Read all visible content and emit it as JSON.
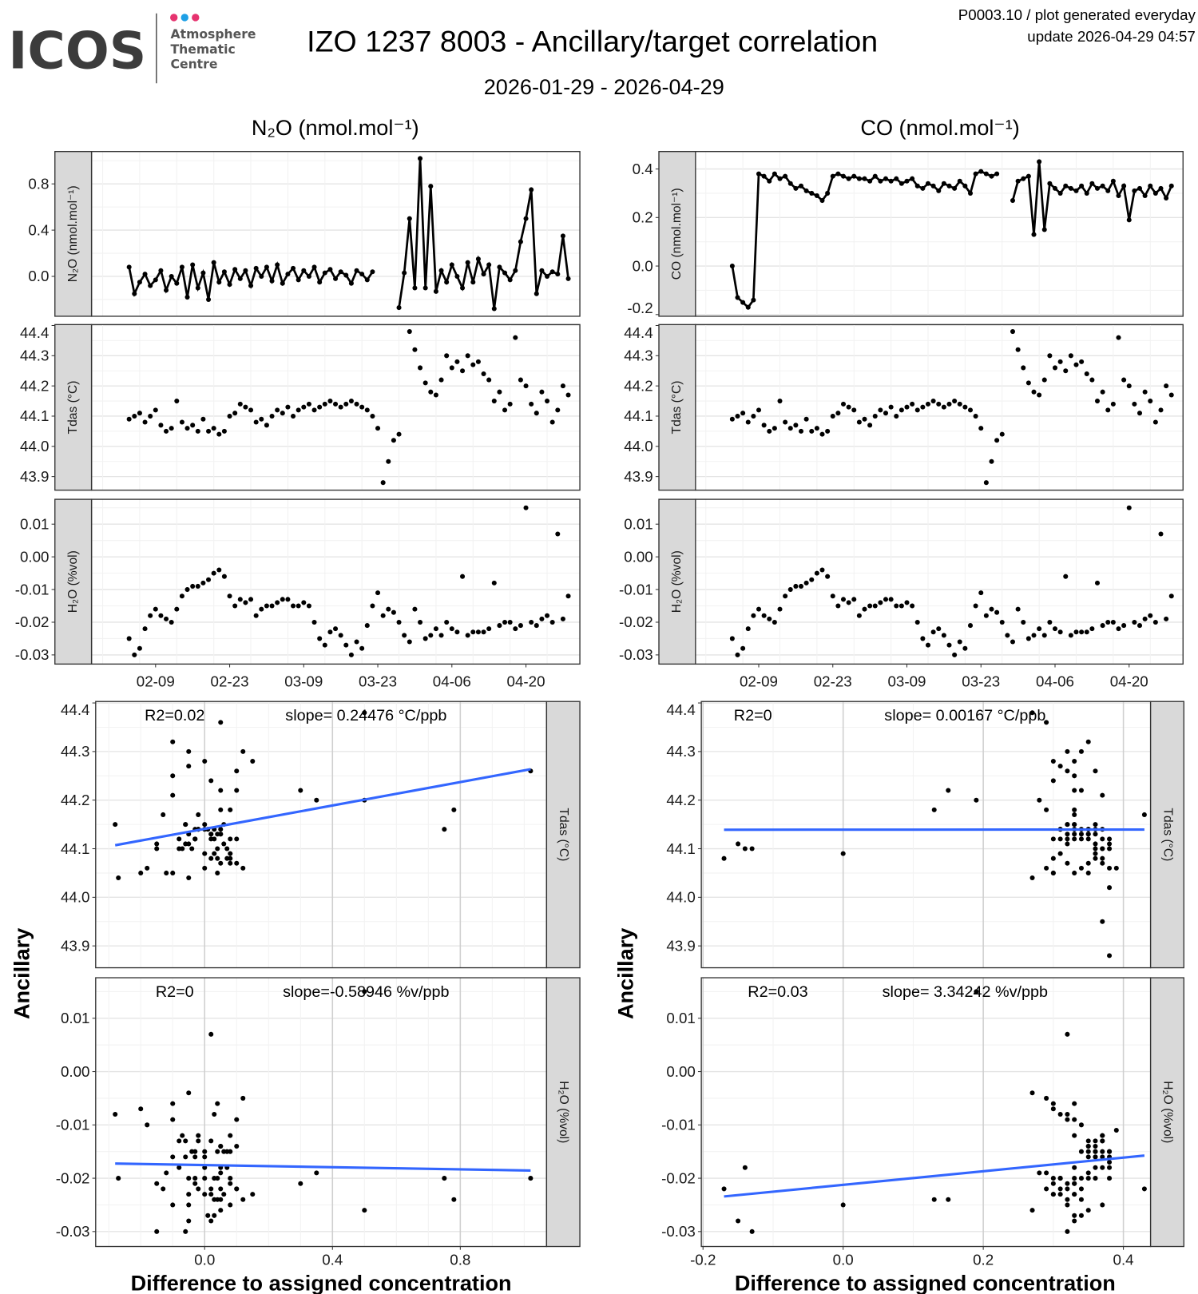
{
  "header": {
    "logo_text": "ICOS",
    "logo_sub": [
      "Atmosphere",
      "Thematic",
      "Centre"
    ],
    "title": "IZO 1237 8003 - Ancillary/target correlation",
    "subtitle": "2026-01-29 - 2026-04-29",
    "meta_line1": "P0003.10 / plot generated everyday",
    "meta_line2": "update  2026-04-29 04:57"
  },
  "colors": {
    "line": "#3366FF",
    "point": "#000000",
    "strip": "#D9D9D9",
    "logo_pink": "#E6336F",
    "logo_blue": "#1EA0E6"
  },
  "chart_data": {
    "type": "scatter",
    "start_date": "2026-02-04",
    "columns": [
      {
        "title": "N₂O (nmol.mol⁻¹)",
        "target": "N2O",
        "target_strip": "N₂O (nmol.mol⁻¹)",
        "target_yticks": [
          "0.0",
          "0.4",
          "0.8"
        ],
        "target_ylim": [
          -0.345,
          1.08
        ],
        "scatter_xticks": [
          "0.0",
          "0.4",
          "0.8"
        ],
        "scatter_xlim": [
          -0.341,
          1.07
        ],
        "annotations": {
          "tdas": [
            "R2=0.02",
            "slope= 0.24476 °C/ppb"
          ],
          "h2o": [
            "R2=0",
            "slope=-0.58946 %v/ppb"
          ]
        }
      },
      {
        "title": "CO (nmol.mol⁻¹)",
        "target": "CO",
        "target_strip": "CO (nmol.mol⁻¹)",
        "target_yticks": [
          "-0.2",
          "0.0",
          "0.2",
          "0.4"
        ],
        "target_ylim": [
          -0.207,
          0.472
        ],
        "scatter_xticks": [
          "-0.2",
          "0.0",
          "0.2",
          "0.4"
        ],
        "scatter_xlim": [
          -0.2024,
          0.4388
        ],
        "annotations": {
          "tdas": [
            "R2=0",
            "slope= 0.00167 °C/ppb"
          ],
          "h2o": [
            "R2=0.03",
            "slope= 3.34242 %v/ppb"
          ]
        }
      }
    ],
    "date_ticks": [
      "02-09",
      "02-23",
      "03-09",
      "03-23",
      "04-06",
      "04-20"
    ],
    "tdas_strip": "Tdas (°C)",
    "h2o_strip": "H₂O (%vol)",
    "tdas_yticks": [
      "44.4",
      "44.3",
      "44.2",
      "44.1",
      "44.0",
      "43.9"
    ],
    "tdas_ylim": [
      43.855,
      44.403
    ],
    "h2o_yticks": [
      "0.01",
      "0.00",
      "-0.01",
      "-0.02",
      "-0.03"
    ],
    "h2o_ylim": [
      -0.0328,
      0.0176
    ],
    "xlabel": "Difference to assigned concentration",
    "ylabel": "Ancillary",
    "series": {
      "N2O": [
        0.08,
        -0.15,
        -0.05,
        0.02,
        -0.08,
        -0.03,
        0.05,
        -0.12,
        0.0,
        -0.06,
        0.08,
        -0.18,
        0.1,
        -0.1,
        0.03,
        -0.2,
        0.12,
        -0.05,
        0.04,
        -0.07,
        0.06,
        -0.02,
        0.05,
        -0.08,
        0.07,
        0.0,
        0.08,
        -0.04,
        0.1,
        -0.06,
        0.02,
        0.07,
        -0.03,
        0.05,
        0.0,
        0.08,
        -0.05,
        0.03,
        0.06,
        -0.02,
        0.04,
        0.01,
        -0.06,
        0.05,
        0.02,
        -0.03,
        0.04,
        null,
        null,
        null,
        null,
        -0.27,
        0.03,
        0.5,
        -0.1,
        1.02,
        -0.1,
        0.78,
        -0.13,
        0.05,
        -0.05,
        0.1,
        0.0,
        -0.1,
        0.12,
        -0.05,
        0.15,
        0.02,
        0.1,
        -0.28,
        0.08,
        0.03,
        -0.03,
        0.05,
        0.3,
        0.5,
        0.75,
        -0.15,
        0.05,
        0.0,
        0.04,
        0.02,
        0.35,
        -0.02
      ],
      "CO": [
        0.0,
        -0.13,
        -0.15,
        -0.17,
        -0.14,
        0.38,
        0.37,
        0.35,
        0.38,
        0.36,
        0.37,
        0.34,
        0.32,
        0.33,
        0.31,
        0.3,
        0.29,
        0.27,
        0.3,
        0.37,
        0.38,
        0.37,
        0.36,
        0.37,
        0.36,
        0.36,
        0.35,
        0.37,
        0.35,
        0.36,
        0.35,
        0.36,
        0.34,
        0.35,
        0.36,
        0.33,
        0.32,
        0.34,
        0.33,
        0.31,
        0.34,
        0.33,
        0.32,
        0.35,
        0.33,
        0.3,
        0.38,
        0.39,
        0.38,
        0.37,
        0.38,
        null,
        null,
        0.27,
        0.35,
        0.36,
        0.37,
        0.13,
        0.43,
        0.15,
        0.34,
        0.32,
        0.3,
        0.33,
        0.32,
        0.31,
        0.33,
        0.3,
        0.34,
        0.32,
        0.33,
        0.31,
        0.35,
        0.29,
        0.33,
        0.19,
        0.31,
        0.32,
        0.29,
        0.33,
        0.3,
        0.32,
        0.28,
        0.33
      ],
      "Tdas": [
        44.09,
        44.1,
        44.11,
        44.08,
        44.1,
        44.12,
        44.07,
        44.05,
        44.06,
        44.15,
        44.08,
        44.06,
        44.07,
        44.05,
        44.09,
        44.05,
        44.06,
        44.04,
        44.05,
        44.1,
        44.11,
        44.14,
        44.13,
        44.12,
        44.08,
        44.09,
        44.07,
        44.1,
        44.12,
        44.11,
        44.13,
        44.1,
        44.12,
        44.13,
        44.14,
        44.12,
        44.13,
        44.14,
        44.15,
        44.14,
        44.13,
        44.14,
        44.15,
        44.14,
        44.13,
        44.12,
        44.1,
        44.06,
        43.88,
        43.95,
        44.02,
        44.04,
        null,
        44.38,
        44.32,
        44.26,
        44.21,
        44.18,
        44.17,
        44.22,
        44.3,
        44.26,
        44.28,
        44.25,
        44.3,
        44.27,
        44.28,
        44.24,
        44.22,
        44.15,
        44.18,
        44.12,
        44.14,
        44.36,
        44.22,
        44.2,
        44.14,
        44.11,
        44.18,
        44.15,
        44.08,
        44.12,
        44.2,
        44.17
      ],
      "H2O": [
        -0.025,
        -0.03,
        -0.028,
        -0.022,
        -0.018,
        -0.016,
        -0.018,
        -0.019,
        -0.02,
        -0.016,
        -0.012,
        -0.01,
        -0.009,
        -0.009,
        -0.008,
        -0.007,
        -0.005,
        -0.004,
        -0.006,
        -0.012,
        -0.015,
        -0.013,
        -0.014,
        -0.013,
        -0.018,
        -0.016,
        -0.015,
        -0.015,
        -0.014,
        -0.013,
        -0.013,
        -0.015,
        -0.015,
        -0.014,
        -0.015,
        -0.02,
        -0.025,
        -0.027,
        -0.023,
        -0.022,
        -0.024,
        -0.027,
        -0.03,
        -0.026,
        -0.028,
        -0.021,
        -0.015,
        -0.011,
        -0.018,
        -0.016,
        -0.017,
        -0.02,
        -0.024,
        -0.026,
        -0.016,
        -0.02,
        -0.025,
        -0.024,
        -0.022,
        -0.024,
        -0.02,
        -0.022,
        -0.023,
        -0.006,
        -0.024,
        -0.023,
        -0.023,
        -0.023,
        -0.022,
        -0.008,
        -0.021,
        -0.02,
        -0.02,
        -0.022,
        -0.021,
        0.015,
        -0.02,
        -0.021,
        -0.019,
        -0.018,
        -0.02,
        0.007,
        -0.019,
        -0.012
      ]
    }
  }
}
